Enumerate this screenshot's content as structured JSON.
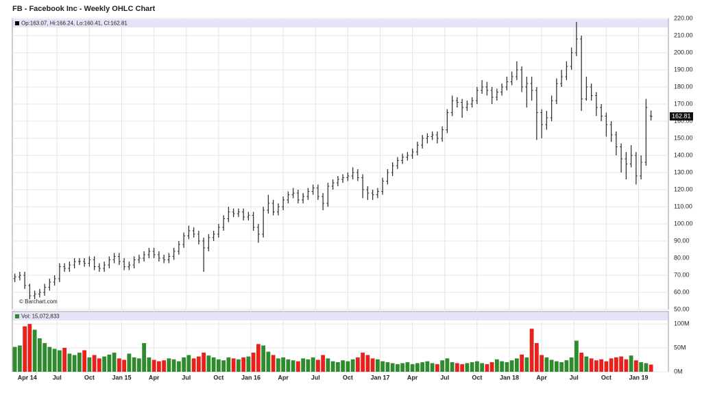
{
  "chart_data": {
    "type": "ohlc",
    "title": "FB - Facebook Inc - Weekly OHLC Chart",
    "legend_text": "Op:163.07, Hi:166.24, Lo:160.41, Cl:162.81",
    "volume_text": "Vol: 15,072,833",
    "watermark": "© Barchart.com",
    "x": [
      0,
      2,
      4,
      6,
      8,
      10,
      12,
      14,
      16,
      18,
      20,
      22,
      24,
      26,
      28,
      30,
      32,
      34,
      36,
      38,
      40,
      42,
      44,
      46,
      48,
      50,
      52,
      54,
      56,
      58,
      60,
      62,
      64,
      66,
      68,
      70,
      72,
      74,
      76,
      78,
      80,
      82,
      84,
      86,
      88,
      90,
      92,
      94,
      96,
      98,
      100,
      102,
      104,
      106,
      108,
      110,
      112,
      114,
      116,
      118,
      120,
      122,
      124,
      126,
      128,
      130,
      132,
      134,
      136,
      138,
      140,
      142,
      144,
      146,
      148,
      150,
      152,
      154,
      156,
      158,
      160,
      162,
      164,
      166,
      168,
      170,
      172,
      174,
      176,
      178,
      180,
      182,
      184,
      186,
      188,
      190,
      192,
      194,
      196,
      198,
      200,
      202,
      204,
      206,
      208,
      210,
      212,
      214,
      216,
      218,
      220,
      222,
      224,
      226,
      228,
      230,
      232,
      234,
      236,
      238,
      240,
      242,
      244,
      246,
      248,
      250,
      252,
      254,
      256
    ],
    "open": [
      68,
      69,
      70,
      64,
      58,
      59,
      60,
      63,
      66,
      68,
      75,
      74,
      76,
      78,
      78,
      77,
      79,
      75,
      74,
      76,
      79,
      81,
      78,
      75,
      76,
      79,
      80,
      82,
      84,
      82,
      80,
      79,
      81,
      84,
      88,
      93,
      96,
      94,
      90,
      86,
      92,
      94,
      98,
      103,
      107,
      106,
      107,
      104,
      105,
      98,
      94,
      108,
      112,
      107,
      110,
      114,
      117,
      118,
      114,
      116,
      119,
      121,
      116,
      112,
      122,
      124,
      126,
      127,
      128,
      130,
      127,
      120,
      118,
      117,
      119,
      125,
      130,
      134,
      137,
      139,
      140,
      142,
      146,
      150,
      151,
      152,
      150,
      155,
      165,
      172,
      171,
      168,
      170,
      172,
      178,
      180,
      178,
      174,
      177,
      180,
      183,
      186,
      190,
      180,
      182,
      178,
      165,
      158,
      162,
      172,
      182,
      186,
      192,
      200,
      208,
      173,
      180,
      175,
      168,
      163,
      158,
      152,
      145,
      138,
      135,
      140,
      128,
      136,
      163.07
    ],
    "high": [
      71,
      72,
      72,
      65,
      61,
      62,
      65,
      68,
      70,
      77,
      77,
      78,
      80,
      80,
      80,
      81,
      81,
      77,
      78,
      81,
      83,
      83,
      80,
      78,
      81,
      82,
      84,
      86,
      86,
      84,
      82,
      83,
      86,
      90,
      95,
      99,
      98,
      96,
      92,
      94,
      96,
      100,
      105,
      110,
      109,
      109,
      109,
      107,
      107,
      100,
      110,
      117,
      114,
      112,
      116,
      119,
      121,
      120,
      118,
      121,
      123,
      123,
      118,
      124,
      126,
      128,
      129,
      130,
      133,
      132,
      129,
      122,
      120,
      121,
      127,
      132,
      136,
      139,
      141,
      142,
      144,
      148,
      152,
      153,
      154,
      154,
      157,
      167,
      175,
      174,
      173,
      172,
      174,
      180,
      184,
      183,
      180,
      179,
      182,
      186,
      189,
      195,
      192,
      186,
      186,
      180,
      167,
      166,
      175,
      185,
      190,
      195,
      203,
      218,
      210,
      186,
      182,
      177,
      170,
      165,
      160,
      154,
      147,
      142,
      146,
      142,
      140,
      173,
      166.24
    ],
    "low": [
      66,
      67,
      62,
      56,
      56,
      57,
      58,
      61,
      64,
      66,
      72,
      72,
      74,
      76,
      75,
      75,
      73,
      72,
      72,
      74,
      77,
      76,
      73,
      73,
      74,
      77,
      78,
      80,
      80,
      78,
      77,
      77,
      79,
      82,
      86,
      91,
      92,
      88,
      72,
      84,
      90,
      92,
      96,
      101,
      104,
      104,
      102,
      102,
      96,
      89,
      92,
      106,
      105,
      105,
      108,
      112,
      115,
      112,
      112,
      114,
      117,
      114,
      108,
      110,
      120,
      122,
      124,
      125,
      126,
      125,
      115,
      114,
      114,
      115,
      117,
      123,
      128,
      132,
      135,
      137,
      138,
      140,
      144,
      147,
      149,
      147,
      148,
      153,
      163,
      168,
      162,
      166,
      168,
      170,
      176,
      175,
      170,
      172,
      175,
      178,
      181,
      184,
      177,
      168,
      172,
      149,
      150,
      155,
      160,
      170,
      180,
      184,
      190,
      198,
      166,
      172,
      172,
      163,
      160,
      151,
      148,
      140,
      130,
      126,
      133,
      123,
      126,
      134,
      160.41
    ],
    "close": [
      69,
      70,
      64,
      58,
      59,
      60,
      63,
      66,
      68,
      75,
      74,
      76,
      78,
      78,
      77,
      79,
      75,
      74,
      76,
      79,
      81,
      78,
      75,
      76,
      79,
      80,
      82,
      84,
      82,
      80,
      79,
      81,
      84,
      88,
      93,
      96,
      94,
      90,
      86,
      92,
      94,
      98,
      103,
      107,
      106,
      107,
      104,
      105,
      98,
      94,
      108,
      112,
      107,
      110,
      114,
      117,
      118,
      114,
      116,
      119,
      121,
      116,
      112,
      122,
      124,
      126,
      127,
      128,
      130,
      127,
      120,
      118,
      117,
      119,
      125,
      130,
      134,
      137,
      139,
      140,
      142,
      146,
      150,
      151,
      152,
      150,
      155,
      165,
      172,
      171,
      168,
      170,
      172,
      178,
      180,
      178,
      174,
      177,
      180,
      183,
      186,
      190,
      180,
      182,
      178,
      165,
      158,
      162,
      172,
      182,
      186,
      192,
      200,
      208,
      173,
      180,
      175,
      168,
      163,
      158,
      152,
      145,
      138,
      135,
      140,
      128,
      136,
      168,
      162.81
    ],
    "volume": [
      52,
      55,
      95,
      100,
      88,
      70,
      60,
      52,
      48,
      45,
      50,
      38,
      35,
      40,
      45,
      30,
      35,
      28,
      32,
      36,
      40,
      28,
      25,
      38,
      30,
      28,
      60,
      30,
      25,
      22,
      24,
      28,
      26,
      22,
      30,
      35,
      28,
      32,
      40,
      34,
      30,
      26,
      24,
      30,
      28,
      26,
      30,
      32,
      40,
      58,
      55,
      42,
      35,
      28,
      30,
      26,
      24,
      22,
      28,
      26,
      30,
      25,
      35,
      28,
      22,
      20,
      24,
      22,
      26,
      30,
      40,
      35,
      28,
      26,
      22,
      20,
      18,
      16,
      18,
      20,
      16,
      18,
      20,
      22,
      18,
      16,
      24,
      28,
      20,
      18,
      16,
      18,
      20,
      22,
      18,
      16,
      20,
      26,
      22,
      20,
      24,
      28,
      36,
      30,
      90,
      60,
      35,
      30,
      25,
      22,
      20,
      24,
      30,
      65,
      40,
      32,
      28,
      24,
      26,
      22,
      28,
      30,
      32,
      26,
      34,
      24,
      20,
      18,
      15.072833
    ],
    "bar_color": "#333333",
    "up_color": "#2e8b2e",
    "down_color": "#e8211d",
    "header_color": "#e4e4f6",
    "grid": true,
    "xlim": [
      -1,
      263
    ],
    "xticks": [
      {
        "value": 5,
        "label": "Apr 14"
      },
      {
        "value": 17,
        "label": "Jul"
      },
      {
        "value": 30,
        "label": "Oct"
      },
      {
        "value": 43,
        "label": "Jan 15"
      },
      {
        "value": 56,
        "label": "Apr"
      },
      {
        "value": 69,
        "label": "Jul"
      },
      {
        "value": 82,
        "label": "Oct"
      },
      {
        "value": 95,
        "label": "Jan 16"
      },
      {
        "value": 108,
        "label": "Apr"
      },
      {
        "value": 121,
        "label": "Jul"
      },
      {
        "value": 134,
        "label": "Oct"
      },
      {
        "value": 147,
        "label": "Jan 17"
      },
      {
        "value": 160,
        "label": "Apr"
      },
      {
        "value": 173,
        "label": "Jul"
      },
      {
        "value": 186,
        "label": "Oct"
      },
      {
        "value": 199,
        "label": "Jan 18"
      },
      {
        "value": 212,
        "label": "Apr"
      },
      {
        "value": 225,
        "label": "Jul"
      },
      {
        "value": 238,
        "label": "Oct"
      },
      {
        "value": 251,
        "label": "Jan 19"
      }
    ],
    "ylim": [
      50,
      220
    ],
    "yticks": [
      {
        "value": 50,
        "label": "50.00"
      },
      {
        "value": 60,
        "label": "60.00"
      },
      {
        "value": 70,
        "label": "70.00"
      },
      {
        "value": 80,
        "label": "80.00"
      },
      {
        "value": 90,
        "label": "90.00"
      },
      {
        "value": 100,
        "label": "100.00"
      },
      {
        "value": 110,
        "label": "110.00"
      },
      {
        "value": 120,
        "label": "120.00"
      },
      {
        "value": 130,
        "label": "130.00"
      },
      {
        "value": 140,
        "label": "140.00"
      },
      {
        "value": 150,
        "label": "150.00"
      },
      {
        "value": 160,
        "label": "160.00"
      },
      {
        "value": 170,
        "label": "170.00"
      },
      {
        "value": 180,
        "label": "180.00"
      },
      {
        "value": 190,
        "label": "190.00"
      },
      {
        "value": 200,
        "label": "200.00"
      },
      {
        "value": 210,
        "label": "210.00"
      },
      {
        "value": 220,
        "label": "220.00"
      }
    ],
    "volume_ylim": [
      0,
      126
    ],
    "volume_yticks": [
      {
        "value": 0,
        "label": "0M"
      },
      {
        "value": 50,
        "label": "50M"
      },
      {
        "value": 100,
        "label": "100M"
      }
    ]
  }
}
